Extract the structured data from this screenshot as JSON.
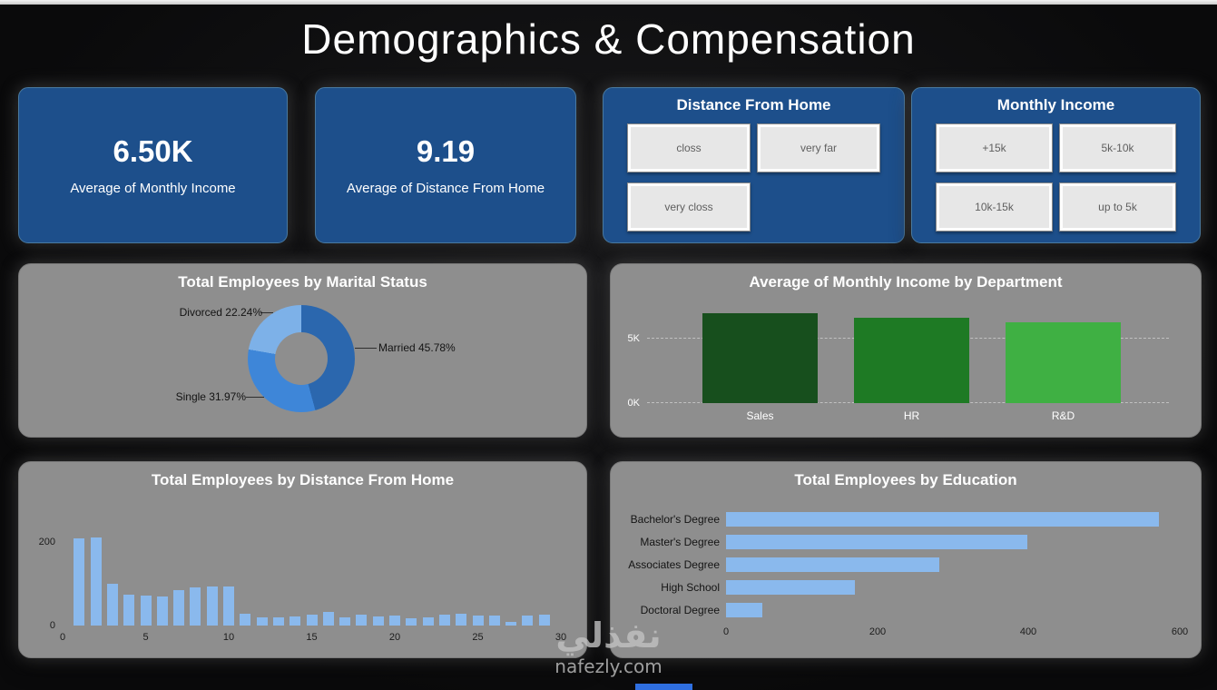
{
  "page": {
    "title": "Demographics & Compensation",
    "watermark": {
      "arabic": "نفذلي",
      "latin": "nafezly.com"
    }
  },
  "kpis": [
    {
      "value": "6.50K",
      "label": "Average of Monthly Income"
    },
    {
      "value": "9.19",
      "label": "Average of Distance From Home"
    }
  ],
  "slicers": [
    {
      "title": "Distance From Home",
      "options": [
        "closs",
        "very far",
        "very closs"
      ]
    },
    {
      "title": "Monthly Income",
      "options": [
        "+15k",
        "5k-10k",
        "10k-15k",
        "up to 5k"
      ]
    }
  ],
  "colors": {
    "kpi_card": "#1d4f8b",
    "panel": "#8e8e8e",
    "light_blue_bar": "#8ab9ed"
  },
  "chart_data": [
    {
      "type": "pie",
      "title": "Total Employees by Marital Status",
      "labels": [
        "Married",
        "Single",
        "Divorced"
      ],
      "values": [
        45.78,
        31.97,
        22.24
      ],
      "unit": "%",
      "colors": [
        "#2b67ae",
        "#3e86d8",
        "#7db1e8"
      ],
      "legend_labels": [
        "Married 45.78%",
        "Single 31.97%",
        "Divorced 22.24%"
      ],
      "donut": true
    },
    {
      "type": "bar",
      "title": "Average of Monthly Income by Department",
      "categories": [
        "Sales",
        "HR",
        "R&D"
      ],
      "values": [
        6.96,
        6.65,
        6.28
      ],
      "value_unit": "K",
      "y_ticks": [
        "5K",
        "0K"
      ],
      "ylim": [
        0,
        8
      ],
      "colors": [
        "#174f1d",
        "#1e7a24",
        "#3fb043"
      ],
      "grid": "dashed"
    },
    {
      "type": "bar",
      "title": "Total Employees by Distance From Home",
      "x_start": 1,
      "values": [
        208,
        211,
        100,
        75,
        72,
        70,
        84,
        92,
        93,
        93,
        29,
        20,
        19,
        21,
        26,
        32,
        20,
        26,
        22,
        25,
        18,
        19,
        27,
        28,
        25,
        25,
        9,
        23,
        27
      ],
      "x_ticks": [
        "0",
        "5",
        "10",
        "15",
        "20",
        "25",
        "30"
      ],
      "y_ticks": [
        "200",
        "0"
      ],
      "ylim": [
        0,
        230
      ],
      "color": "#8ab9ed"
    },
    {
      "type": "bar",
      "orientation": "horizontal",
      "title": "Total Employees by Education",
      "categories": [
        "Bachelor's Degree",
        "Master's Degree",
        "Associates Degree",
        "High School",
        "Doctoral Degree"
      ],
      "values": [
        572,
        398,
        282,
        170,
        48
      ],
      "x_ticks": [
        "0",
        "200",
        "400",
        "600"
      ],
      "xlim": [
        0,
        620
      ],
      "color": "#8ab9ed"
    }
  ]
}
